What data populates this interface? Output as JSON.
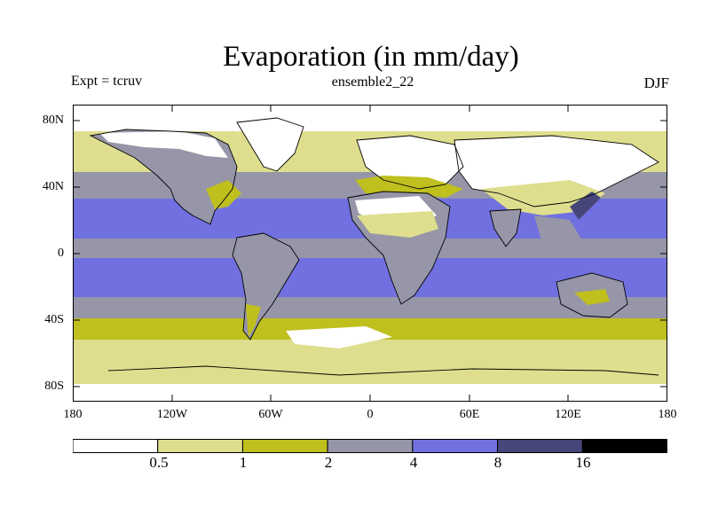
{
  "title": "Evaporation (in mm/day)",
  "experiment": "Expt = tcruv",
  "ensemble": "ensemble2_22",
  "season": "DJF",
  "latitude_ticks": [
    "80N",
    "40N",
    "0",
    "40S",
    "80S"
  ],
  "longitude_ticks": [
    "180",
    "120W",
    "60W",
    "0",
    "60E",
    "120E",
    "180"
  ],
  "colorbar": {
    "colors": [
      "#ffffff",
      "#dede8e",
      "#bfbf1e",
      "#9696a8",
      "#7070e0",
      "#46467a",
      "#000000"
    ],
    "labels": [
      "0.5",
      "1",
      "2",
      "4",
      "8",
      "16"
    ]
  }
}
